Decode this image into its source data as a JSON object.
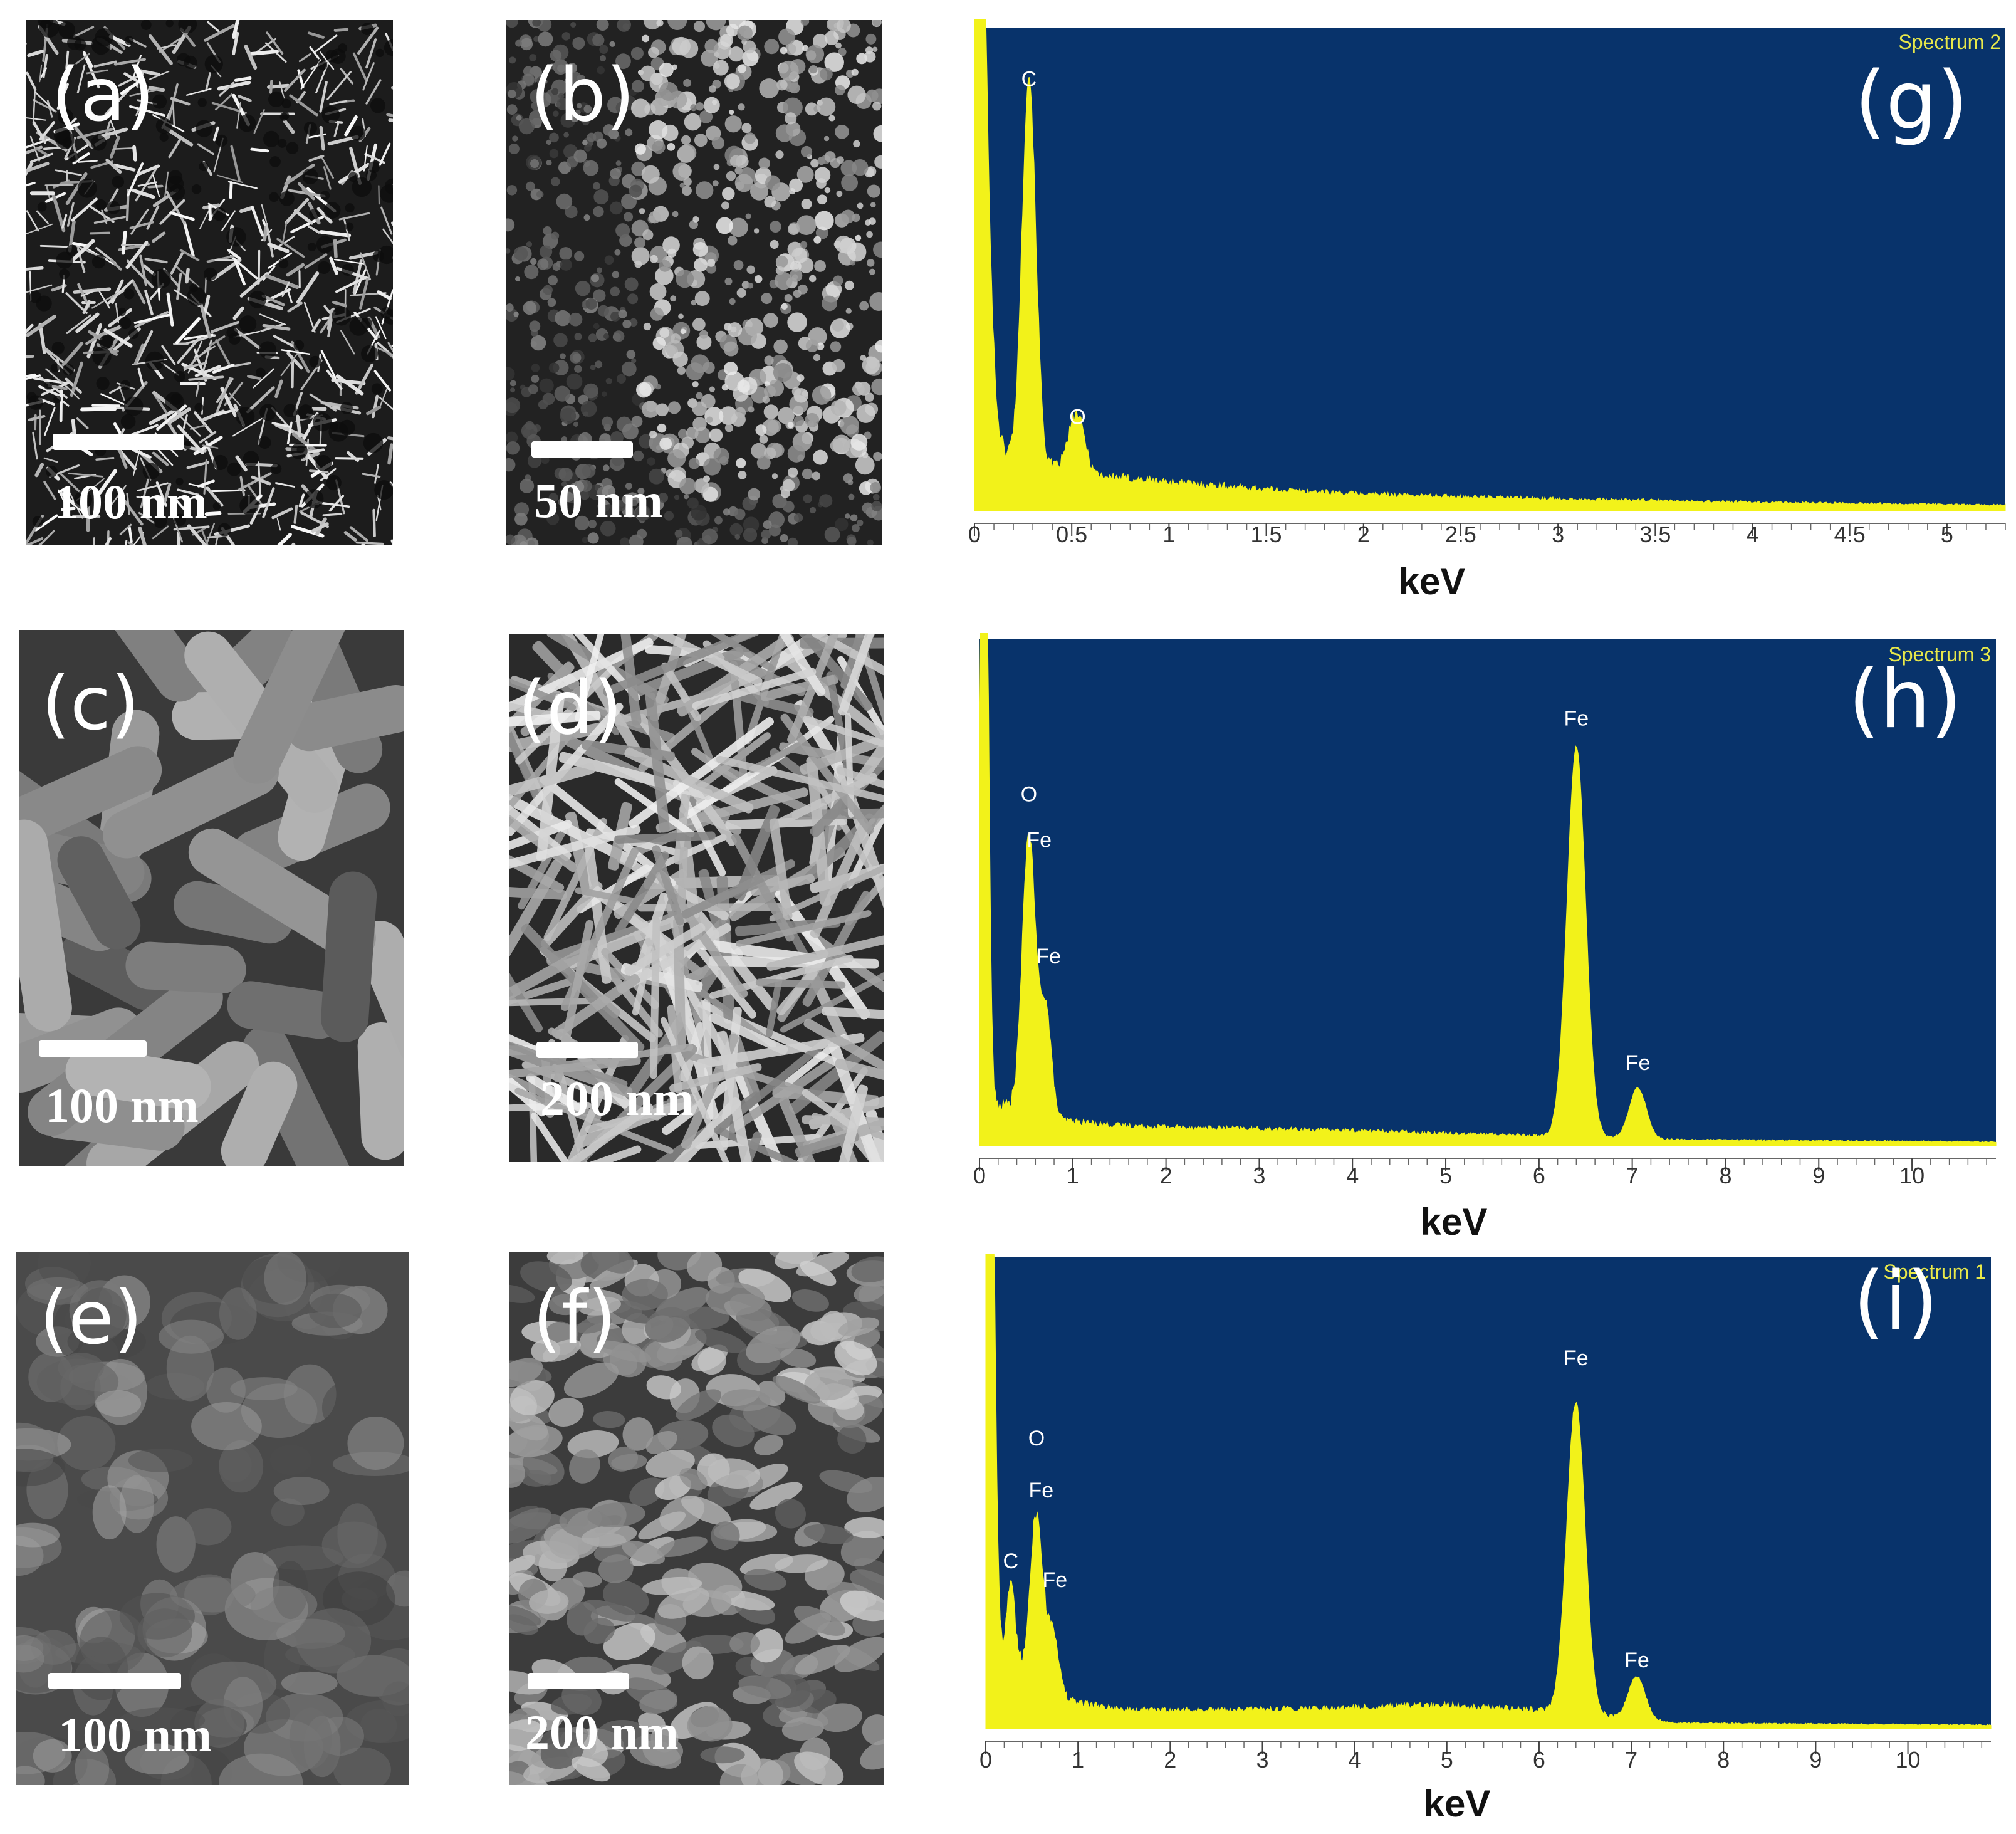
{
  "sem_panels": [
    {
      "id": "a",
      "letter": "(a)",
      "scale": "100 nm",
      "tone": "network"
    },
    {
      "id": "b",
      "letter": "(b)",
      "scale": "50 nm",
      "tone": "cluster"
    },
    {
      "id": "c",
      "letter": "(c)",
      "scale": "100 nm",
      "tone": "rods-large"
    },
    {
      "id": "d",
      "letter": "(d)",
      "scale": "200 nm",
      "tone": "needles"
    },
    {
      "id": "e",
      "letter": "(e)",
      "scale": "100 nm",
      "tone": "blurry"
    },
    {
      "id": "f",
      "letter": "(f)",
      "scale": "200 nm",
      "tone": "flakes"
    }
  ],
  "colors": {
    "eds_background": "#08336b",
    "eds_fill": "#f2f21a",
    "label": "#ffffff",
    "spectrum_label": "#e8e84a"
  },
  "chart_data": [
    {
      "type": "area",
      "letter": "(g)",
      "spectrum_label": "Spectrum 2",
      "xlabel": "keV",
      "xlim": [
        0,
        5.3
      ],
      "xticks": [
        0,
        0.5,
        1,
        1.5,
        2,
        2.5,
        3,
        3.5,
        4,
        4.5,
        5
      ],
      "xtick_labels": [
        "0",
        "0.5",
        "1",
        "1.5",
        "2",
        "2.5",
        "3",
        "3.5",
        "4",
        "4.5",
        "5"
      ],
      "ymax": 100,
      "baseline": [
        [
          0.15,
          12
        ],
        [
          0.4,
          9
        ],
        [
          0.7,
          7
        ],
        [
          1,
          6
        ],
        [
          1.5,
          4.5
        ],
        [
          2,
          3.5
        ],
        [
          3,
          2.5
        ],
        [
          4,
          1.8
        ],
        [
          5.3,
          1.2
        ]
      ],
      "peaks": [
        {
          "x": 0.01,
          "height": 160,
          "width": 0.045
        },
        {
          "x": 0.28,
          "height": 80,
          "width": 0.035
        },
        {
          "x": 0.525,
          "height": 12,
          "width": 0.04
        }
      ],
      "peak_labels": [
        {
          "text": "C",
          "x": 0.28,
          "y": 88
        },
        {
          "text": "O",
          "x": 0.53,
          "y": 18
        }
      ]
    },
    {
      "type": "area",
      "letter": "(h)",
      "spectrum_label": "Spectrum 3",
      "xlabel": "keV",
      "xlim": [
        0,
        10.9
      ],
      "xticks": [
        0,
        1,
        2,
        3,
        4,
        5,
        6,
        7,
        8,
        9,
        10
      ],
      "xtick_labels": [
        "0",
        "1",
        "2",
        "3",
        "4",
        "5",
        "6",
        "7",
        "8",
        "9",
        "10"
      ],
      "ymax": 100,
      "baseline": [
        [
          0.3,
          8
        ],
        [
          0.9,
          5
        ],
        [
          1.5,
          4
        ],
        [
          2.5,
          3.5
        ],
        [
          4,
          3
        ],
        [
          5,
          2.5
        ],
        [
          6,
          2
        ],
        [
          7.5,
          1.2
        ],
        [
          10.9,
          0.8
        ]
      ],
      "peaks": [
        {
          "x": 0.05,
          "height": 160,
          "width": 0.04
        },
        {
          "x": 0.53,
          "height": 55,
          "width": 0.07
        },
        {
          "x": 0.71,
          "height": 21,
          "width": 0.06
        },
        {
          "x": 6.4,
          "height": 77,
          "width": 0.1
        },
        {
          "x": 7.06,
          "height": 10,
          "width": 0.09
        }
      ],
      "peak_labels": [
        {
          "text": "O",
          "x": 0.53,
          "y": 68
        },
        {
          "text": "Fe",
          "x": 0.64,
          "y": 59
        },
        {
          "text": "Fe",
          "x": 0.74,
          "y": 36
        },
        {
          "text": "Fe",
          "x": 6.4,
          "y": 83
        },
        {
          "text": "Fe",
          "x": 7.06,
          "y": 15
        }
      ]
    },
    {
      "type": "area",
      "letter": "(i)",
      "spectrum_label": "Spectrum 1",
      "xlabel": "keV",
      "xlim": [
        0,
        10.9
      ],
      "xticks": [
        0,
        1,
        2,
        3,
        4,
        5,
        6,
        7,
        8,
        9,
        10
      ],
      "xtick_labels": [
        "0",
        "1",
        "2",
        "3",
        "4",
        "5",
        "6",
        "7",
        "8",
        "9",
        "10"
      ],
      "ymax": 100,
      "baseline": [
        [
          0.3,
          12
        ],
        [
          0.9,
          6
        ],
        [
          1.5,
          4
        ],
        [
          2.5,
          4
        ],
        [
          4,
          4.5
        ],
        [
          5,
          5
        ],
        [
          6,
          4
        ],
        [
          7.5,
          1.2
        ],
        [
          10.9,
          0.8
        ]
      ],
      "peaks": [
        {
          "x": 0.04,
          "height": 160,
          "width": 0.05
        },
        {
          "x": 0.27,
          "height": 18,
          "width": 0.05
        },
        {
          "x": 0.55,
          "height": 36,
          "width": 0.07
        },
        {
          "x": 0.73,
          "height": 13,
          "width": 0.06
        },
        {
          "x": 6.4,
          "height": 66,
          "width": 0.1
        },
        {
          "x": 7.06,
          "height": 9,
          "width": 0.09
        }
      ],
      "peak_labels": [
        {
          "text": "O",
          "x": 0.55,
          "y": 60
        },
        {
          "text": "Fe",
          "x": 0.6,
          "y": 49
        },
        {
          "text": "C",
          "x": 0.27,
          "y": 34
        },
        {
          "text": "Fe",
          "x": 0.75,
          "y": 30
        },
        {
          "text": "Fe",
          "x": 6.4,
          "y": 77
        },
        {
          "text": "Fe",
          "x": 7.06,
          "y": 13
        }
      ]
    }
  ]
}
